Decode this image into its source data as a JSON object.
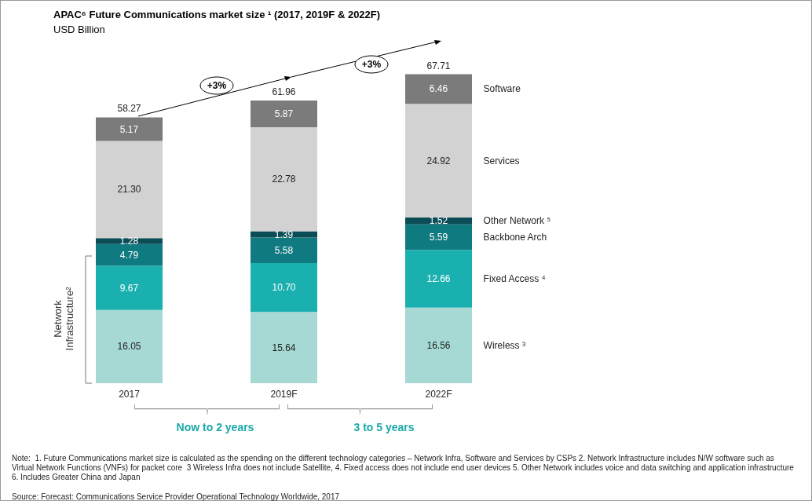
{
  "chart_data": {
    "type": "bar",
    "stacked": true,
    "title": "APAC⁶ Future Communications market size ¹ (2017, 2019F & 2022F)",
    "subtitle": "USD Billion",
    "categories": [
      "2017",
      "2019F",
      "2022F"
    ],
    "series": [
      {
        "name": "Wireless ³",
        "color": "#a6d9d4",
        "values": [
          16.05,
          15.64,
          16.56
        ],
        "value_labels": [
          "16.05",
          "15.64",
          "16.56"
        ]
      },
      {
        "name": "Fixed Access ⁴",
        "color": "#1bb0b0",
        "values": [
          9.67,
          10.7,
          12.66
        ],
        "value_labels": [
          "9.67",
          "10.70",
          "12.66"
        ]
      },
      {
        "name": "Backbone Arch",
        "color": "#0f7a80",
        "values": [
          4.79,
          5.58,
          5.59
        ],
        "value_labels": [
          "4.79",
          "5.58",
          "5.59"
        ]
      },
      {
        "name": "Other Network ⁵",
        "color": "#0b4d57",
        "values": [
          1.28,
          1.39,
          1.52
        ],
        "value_labels": [
          "1.28",
          "1.39",
          "1.52"
        ]
      },
      {
        "name": "Services",
        "color": "#d2d2d2",
        "values": [
          21.3,
          22.78,
          24.92
        ],
        "value_labels": [
          "21.30",
          "22.78",
          "24.92"
        ]
      },
      {
        "name": "Software",
        "color": "#7b7b7b",
        "values": [
          5.17,
          5.87,
          6.46
        ],
        "value_labels": [
          "5.17",
          "5.87",
          "6.46"
        ]
      }
    ],
    "totals": [
      "58.27",
      "61.96",
      "67.71"
    ],
    "tick_labels": "x",
    "legend": false,
    "annotations": [
      "+3%",
      "+3%",
      "Now to 2 years",
      "3 to 5 years",
      "Network Infrastructure²",
      "Note:  1. Future Communications market size is calculated as the spending on the different technology categories – Network Infra, Software and Services by CSPs 2. Network Infrastructure includes N/W software such as Virtual Network Functions (VNFs) for packet core  3 Wireless Infra does not include Satellite, 4. Fixed access does not include end user devices 5. Other Network includes voice and data switching and application infrastructure 6. Includes Greater China and Japan",
      "Source: Forecast: Communications Service Provider Operational Technology Worldwide, 2017"
    ]
  }
}
